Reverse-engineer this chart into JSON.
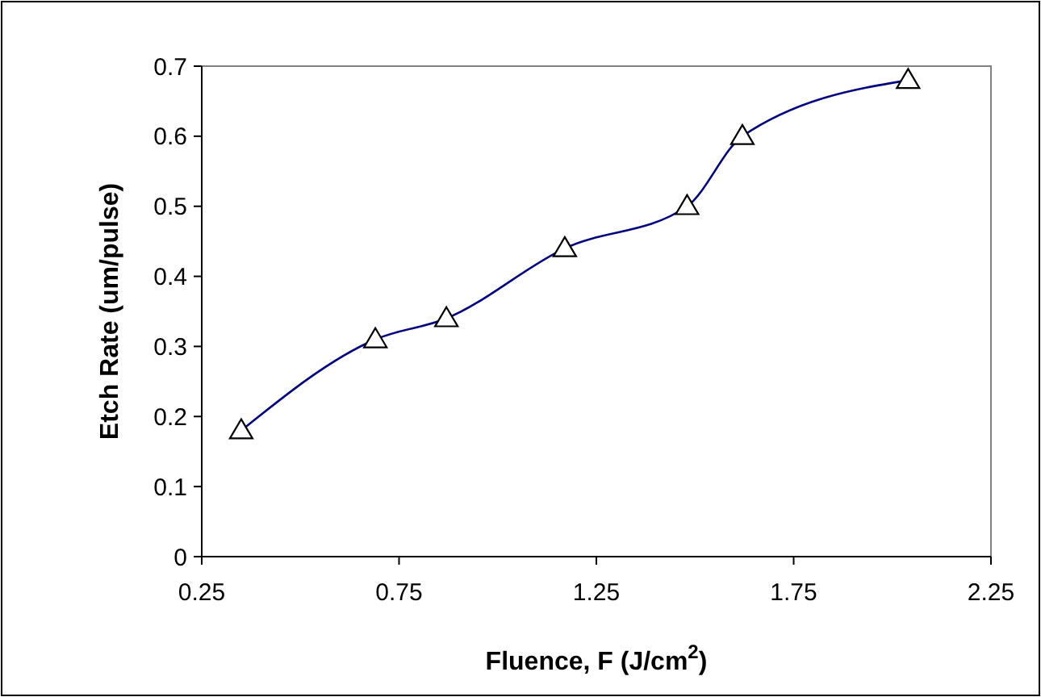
{
  "chart_data": {
    "type": "line",
    "xlabel": "Fluence, F (J/cm$^{2}$)",
    "ylabel": "Etch Rate (um/pulse)",
    "x": [
      0.35,
      0.69,
      0.87,
      1.17,
      1.48,
      1.62,
      2.04
    ],
    "series": [
      {
        "color": "#000080",
        "values": [
          0.18,
          0.31,
          0.34,
          0.44,
          0.5,
          0.6,
          0.68
        ]
      }
    ],
    "xlim": [
      0.25,
      2.25
    ],
    "xticks": [
      0.25,
      0.75,
      1.25,
      1.75,
      2.25
    ],
    "ylim": [
      0,
      0.7
    ],
    "yticks": [
      0,
      0.1,
      0.2,
      0.3,
      0.4,
      0.5,
      0.6,
      0.7
    ],
    "grid": false,
    "marker": "triangle",
    "line_style": "solid"
  }
}
